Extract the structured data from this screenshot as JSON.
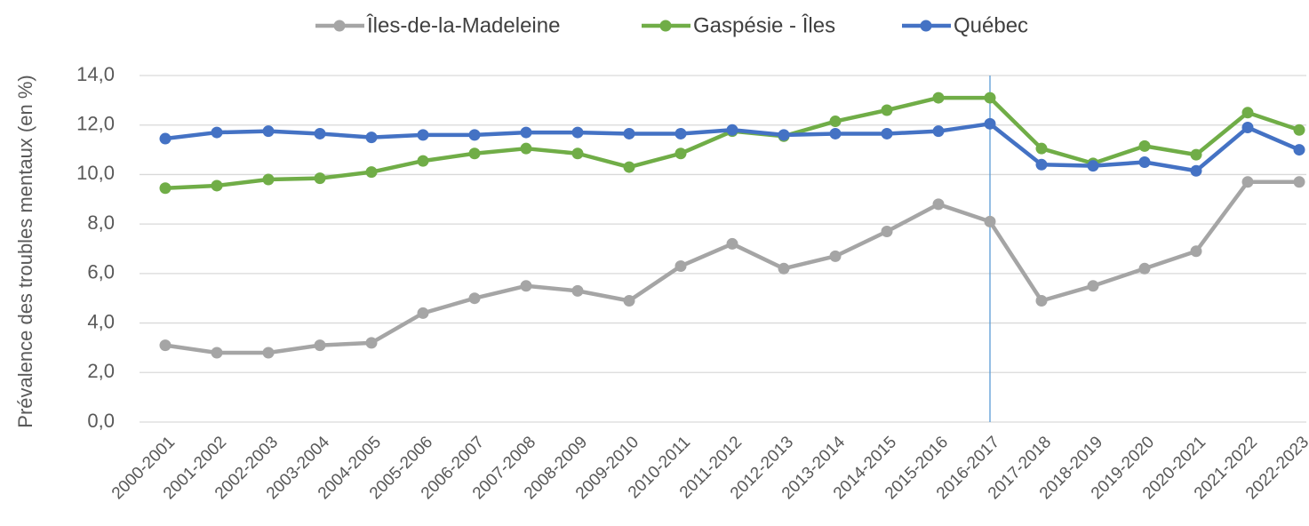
{
  "chart_data": {
    "type": "line",
    "y_label": "Prévalence des troubles mentaux (en %)",
    "categories": [
      "2000-2001",
      "2001-2002",
      "2002-2003",
      "2003-2004",
      "2004-2005",
      "2005-2006",
      "2006-2007",
      "2007-2008",
      "2008-2009",
      "2009-2010",
      "2010-2011",
      "2011-2012",
      "2012-2013",
      "2013-2014",
      "2014-2015",
      "2015-2016",
      "2016-2017",
      "2017-2018",
      "2018-2019",
      "2019-2020",
      "2020-2021",
      "2021-2022",
      "2022-2023"
    ],
    "series": [
      {
        "name": "Îles-de-la-Madeleine",
        "color": "#a5a5a5",
        "values": [
          3.1,
          2.8,
          2.8,
          3.1,
          3.2,
          4.4,
          5.0,
          5.5,
          5.3,
          4.9,
          6.3,
          7.2,
          6.2,
          6.7,
          7.7,
          8.8,
          8.1,
          4.9,
          5.5,
          6.2,
          6.9,
          9.7,
          9.7
        ]
      },
      {
        "name": "Gaspésie - Îles",
        "color": "#70ad47",
        "values": [
          9.45,
          9.55,
          9.8,
          9.85,
          10.1,
          10.55,
          10.85,
          11.05,
          10.85,
          10.3,
          10.85,
          11.75,
          11.55,
          12.15,
          12.6,
          13.1,
          13.1,
          11.05,
          10.45,
          11.15,
          10.8,
          12.5,
          11.8
        ]
      },
      {
        "name": "Québec",
        "color": "#4472c4",
        "values": [
          11.45,
          11.7,
          11.75,
          11.65,
          11.5,
          11.6,
          11.6,
          11.7,
          11.7,
          11.65,
          11.65,
          11.8,
          11.6,
          11.65,
          11.65,
          11.75,
          12.05,
          10.4,
          10.35,
          10.5,
          10.15,
          11.9,
          11.0
        ]
      }
    ],
    "ylim": [
      0,
      14
    ],
    "yticks": [
      {
        "value": 0,
        "label": "0,0"
      },
      {
        "value": 2,
        "label": "2,0"
      },
      {
        "value": 4,
        "label": "4,0"
      },
      {
        "value": 6,
        "label": "6,0"
      },
      {
        "value": 8,
        "label": "8,0"
      },
      {
        "value": 10,
        "label": "10,0"
      },
      {
        "value": 12,
        "label": "12,0"
      },
      {
        "value": 14,
        "label": "14,0"
      }
    ],
    "grid": true,
    "vline": "2016-2017",
    "legend": "top"
  }
}
